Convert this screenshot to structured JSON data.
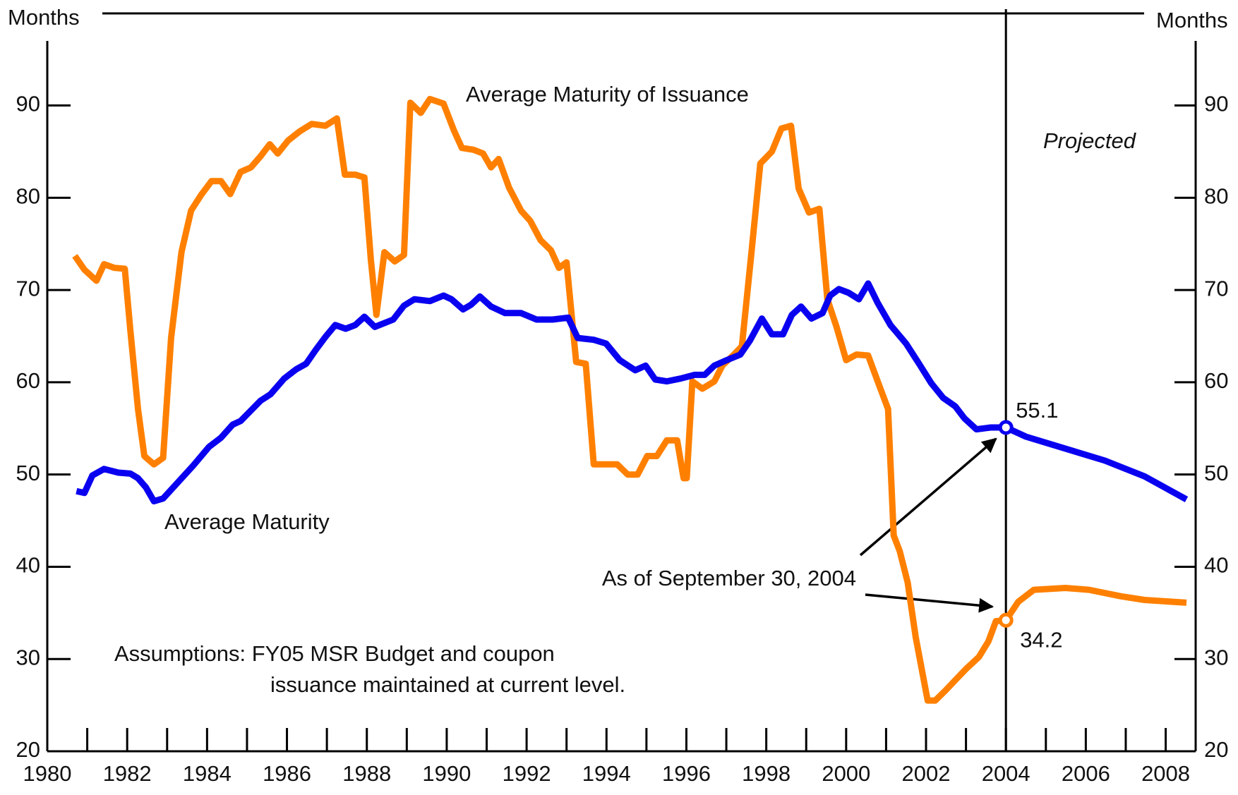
{
  "chart_data": {
    "type": "line",
    "y_label": "Months",
    "y2_label": "Months",
    "xlim": [
      1980,
      2008.75
    ],
    "xticks": [
      1980,
      1982,
      1984,
      1986,
      1988,
      1990,
      1992,
      1994,
      1996,
      1998,
      2000,
      2002,
      2004,
      2006,
      2008
    ],
    "xminorticks": [
      1981,
      1983,
      1985,
      1987,
      1989,
      1991,
      1993,
      1995,
      1997,
      1999,
      2001,
      2003,
      2005,
      2007
    ],
    "ylim": [
      20,
      97
    ],
    "yticks": [
      20,
      30,
      40,
      50,
      60,
      70,
      80,
      90
    ],
    "y2lim": [
      20,
      97
    ],
    "y2ticks": [
      20,
      30,
      40,
      50,
      60,
      70,
      80,
      90
    ],
    "grid": false,
    "projection_start": 2004,
    "projection_label": "Projected",
    "annotation": "As of September 30, 2004",
    "assumptions": [
      "Assumptions: FY05 MSR Budget and coupon",
      "issuance maintained at current level."
    ],
    "series": [
      {
        "name": "Average Maturity",
        "color": "#0a00f0",
        "x": [
          1980.73,
          1980.93,
          1981.13,
          1981.42,
          1981.78,
          1982.08,
          1982.27,
          1982.47,
          1982.67,
          1982.9,
          1983.26,
          1983.66,
          1984.05,
          1984.35,
          1984.64,
          1984.84,
          1985.34,
          1985.59,
          1985.93,
          1986.23,
          1986.48,
          1986.72,
          1986.96,
          1987.21,
          1987.47,
          1987.71,
          1987.94,
          1988.2,
          1988.66,
          1988.93,
          1989.19,
          1989.58,
          1989.92,
          1990.12,
          1990.41,
          1990.61,
          1990.83,
          1991.11,
          1991.46,
          1991.86,
          1992.25,
          1992.65,
          1993.04,
          1993.28,
          1993.68,
          1993.99,
          1994.33,
          1994.72,
          1994.98,
          1995.22,
          1995.51,
          1995.85,
          1996.21,
          1996.46,
          1996.7,
          1996.96,
          1997.35,
          1997.59,
          1997.89,
          1998.14,
          1998.42,
          1998.64,
          1998.87,
          1999.13,
          1999.41,
          1999.6,
          1999.82,
          2000.06,
          2000.32,
          2000.55,
          2000.79,
          2001.11,
          2001.5,
          2001.84,
          2002.13,
          2002.43,
          2002.73,
          2002.96,
          2003.26,
          2003.62,
          2004,
          2004.5,
          2006.48,
          2007.47,
          2008.52
        ],
        "values": [
          48.2,
          48,
          49.9,
          50.6,
          50.2,
          50.1,
          49.6,
          48.6,
          47.1,
          47.4,
          49.1,
          51,
          53,
          54,
          55.4,
          55.8,
          58,
          58.7,
          60.4,
          61.4,
          62,
          63.5,
          64.9,
          66.2,
          65.8,
          66.2,
          67.1,
          66,
          66.8,
          68.3,
          69,
          68.8,
          69.4,
          69,
          67.9,
          68.4,
          69.3,
          68.2,
          67.5,
          67.5,
          66.8,
          66.8,
          67,
          64.8,
          64.6,
          64.2,
          62.4,
          61.3,
          61.8,
          60.3,
          60.1,
          60.4,
          60.8,
          60.8,
          61.8,
          62.3,
          63,
          64.5,
          66.9,
          65.2,
          65.2,
          67.3,
          68.2,
          66.9,
          67.5,
          69.4,
          70.1,
          69.7,
          69,
          70.7,
          68.6,
          66.2,
          64.2,
          61.9,
          59.9,
          58.3,
          57.4,
          56.1,
          54.9,
          55.1,
          55.1,
          54.1,
          51.5,
          49.8,
          47.3
        ]
      },
      {
        "name": "Average Maturity of Issuance",
        "color": "#ff8000",
        "x": [
          1980.69,
          1980.93,
          1981.23,
          1981.42,
          1981.68,
          1981.94,
          1982.08,
          1982.27,
          1982.43,
          1982.67,
          1982.9,
          1983.1,
          1983.36,
          1983.6,
          1983.85,
          1984.11,
          1984.35,
          1984.58,
          1984.84,
          1985.1,
          1985.34,
          1985.57,
          1985.77,
          1986.03,
          1986.32,
          1986.62,
          1986.96,
          1987.25,
          1987.45,
          1987.71,
          1987.94,
          1988.1,
          1988.24,
          1988.44,
          1988.7,
          1988.93,
          1989.09,
          1989.35,
          1989.58,
          1989.92,
          1990.18,
          1990.38,
          1990.67,
          1990.91,
          1991.11,
          1991.3,
          1991.56,
          1991.86,
          1992.09,
          1992.35,
          1992.61,
          1992.81,
          1993,
          1993.24,
          1993.48,
          1993.68,
          1994.03,
          1994.27,
          1994.53,
          1994.78,
          1995.02,
          1995.26,
          1995.51,
          1995.77,
          1995.93,
          1996.01,
          1996.15,
          1996.4,
          1996.7,
          1996.9,
          1997.19,
          1997.39,
          1997.63,
          1997.85,
          1998.14,
          1998.38,
          1998.62,
          1998.81,
          1999.07,
          1999.33,
          1999.53,
          1999.76,
          2000,
          2000.26,
          2000.55,
          2000.79,
          2001.05,
          2001.19,
          2001.34,
          2001.54,
          2001.74,
          2002.04,
          2002.23,
          2002.49,
          2002.73,
          2003.02,
          2003.32,
          2003.56,
          2003.75,
          2004,
          2004.31,
          2004.7,
          2005.49,
          2006.08,
          2006.88,
          2007.47,
          2008.52
        ],
        "values": [
          73.7,
          72.2,
          71,
          72.8,
          72.4,
          72.3,
          65.6,
          57.1,
          52,
          51.1,
          51.8,
          64.8,
          74.1,
          78.6,
          80.3,
          81.8,
          81.8,
          80.4,
          82.8,
          83.3,
          84.5,
          85.8,
          84.8,
          86.2,
          87.2,
          88,
          87.8,
          88.6,
          82.5,
          82.5,
          82.2,
          73.3,
          67.3,
          74.1,
          73.1,
          73.8,
          90.3,
          89.2,
          90.7,
          90.2,
          87.3,
          85.4,
          85.2,
          84.8,
          83.3,
          84.2,
          81.1,
          78.6,
          77.5,
          75.4,
          74.3,
          72.4,
          73,
          62.2,
          62,
          51.1,
          51.1,
          51.1,
          50,
          50,
          52,
          52,
          53.7,
          53.7,
          49.6,
          49.6,
          60.1,
          59.3,
          60.1,
          61.8,
          63,
          63.9,
          74.1,
          83.7,
          85,
          87.5,
          87.8,
          81,
          78.4,
          78.8,
          69,
          66,
          62.4,
          63,
          62.9,
          60.1,
          57.1,
          43.4,
          41.7,
          38.3,
          32.4,
          25.5,
          25.5,
          26.6,
          27.7,
          29,
          30.2,
          31.9,
          34.1,
          34.2,
          36.2,
          37.5,
          37.7,
          37.5,
          36.8,
          36.4,
          36.1
        ]
      }
    ]
  }
}
